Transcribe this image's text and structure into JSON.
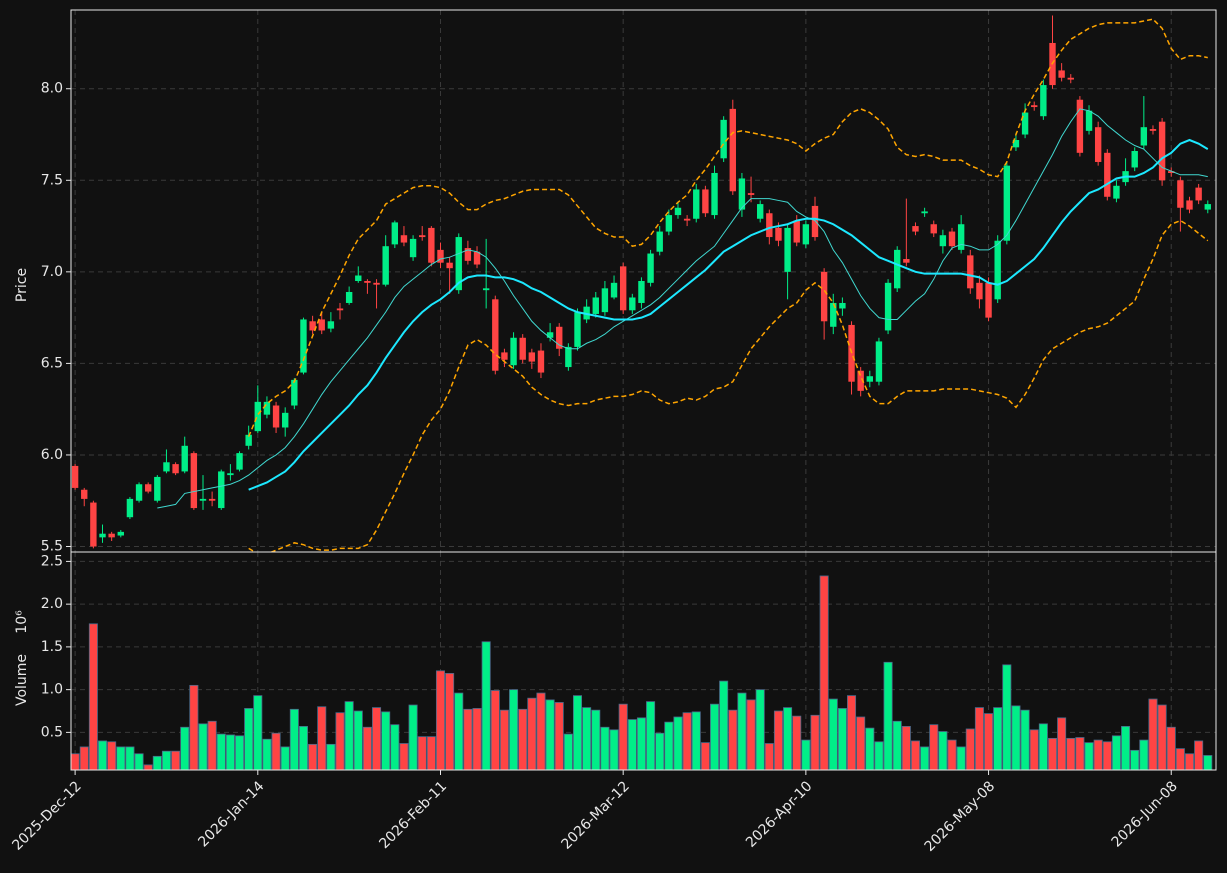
{
  "chart_data": {
    "type": "candlestick",
    "ylabel": "Price",
    "volume_label": "Volume",
    "volume_offset": "10⁶",
    "up_color": "#00ee88",
    "down_color": "#ff4444",
    "grid": true,
    "categories": [
      "2025-Dec-12",
      null,
      null,
      null,
      null,
      null,
      null,
      null,
      null,
      null,
      null,
      null,
      null,
      null,
      null,
      null,
      null,
      null,
      null,
      null,
      "2026-Jan-14",
      null,
      null,
      null,
      null,
      null,
      null,
      null,
      null,
      null,
      null,
      null,
      null,
      null,
      null,
      null,
      null,
      null,
      null,
      null,
      "2026-Feb-11",
      null,
      null,
      null,
      null,
      null,
      null,
      null,
      null,
      null,
      null,
      null,
      null,
      null,
      null,
      null,
      null,
      null,
      null,
      null,
      "2026-Mar-12",
      null,
      null,
      null,
      null,
      null,
      null,
      null,
      null,
      null,
      null,
      null,
      null,
      null,
      null,
      null,
      null,
      null,
      null,
      null,
      "2026-Apr-10",
      null,
      null,
      null,
      null,
      null,
      null,
      null,
      null,
      null,
      null,
      null,
      null,
      null,
      null,
      null,
      null,
      null,
      null,
      null,
      "2026-May-08",
      null,
      null,
      null,
      null,
      null,
      null,
      null,
      null,
      null,
      null,
      null,
      null,
      null,
      null,
      null,
      null,
      null,
      null,
      null,
      "2026-Jun-08",
      null,
      null,
      null,
      null
    ],
    "open": [
      5.94,
      5.81,
      5.74,
      5.55,
      5.57,
      5.56,
      5.66,
      5.75,
      5.84,
      5.75,
      5.91,
      5.95,
      5.91,
      6.01,
      5.75,
      5.76,
      5.71,
      5.89,
      5.92,
      6.05,
      6.13,
      6.22,
      6.27,
      6.15,
      6.27,
      6.45,
      6.73,
      6.74,
      6.69,
      6.8,
      6.83,
      6.95,
      6.95,
      6.94,
      6.93,
      7.15,
      7.2,
      7.08,
      7.2,
      7.24,
      7.12,
      7.05,
      6.9,
      7.13,
      7.11,
      6.9,
      6.85,
      6.56,
      6.49,
      6.64,
      6.56,
      6.57,
      6.64,
      6.7,
      6.48,
      6.59,
      6.74,
      6.77,
      6.78,
      6.86,
      7.03,
      6.79,
      6.83,
      6.94,
      7.11,
      7.22,
      7.31,
      7.29,
      7.29,
      7.45,
      7.31,
      7.62,
      7.89,
      7.34,
      7.43,
      7.29,
      7.32,
      7.24,
      7.0,
      7.28,
      7.15,
      7.36,
      7.0,
      6.7,
      6.8,
      6.71,
      6.46,
      6.4,
      6.4,
      6.68,
      6.91,
      7.07,
      7.25,
      7.32,
      7.26,
      7.14,
      7.22,
      7.12,
      7.09,
      6.94,
      6.94,
      6.85,
      7.17,
      7.68,
      7.75,
      7.91,
      7.85,
      8.25,
      8.1,
      8.06,
      7.94,
      7.77,
      7.79,
      7.65,
      7.4,
      7.49,
      7.57,
      7.69,
      7.78,
      7.82,
      7.55,
      7.5,
      7.39,
      7.46,
      7.34
    ],
    "high": [
      5.95,
      5.82,
      5.75,
      5.62,
      5.58,
      5.59,
      5.77,
      5.85,
      5.85,
      5.89,
      6.03,
      5.96,
      6.1,
      6.02,
      5.89,
      5.8,
      5.92,
      5.95,
      6.02,
      6.16,
      6.38,
      6.32,
      6.29,
      6.26,
      6.42,
      6.75,
      6.76,
      6.78,
      6.78,
      6.83,
      6.92,
      7.03,
      6.96,
      6.96,
      7.2,
      7.28,
      7.25,
      7.2,
      7.25,
      7.25,
      7.16,
      7.08,
      7.21,
      7.17,
      7.14,
      7.18,
      6.87,
      6.58,
      6.67,
      6.66,
      6.58,
      6.61,
      6.72,
      6.72,
      6.61,
      6.8,
      6.85,
      6.89,
      6.95,
      6.98,
      7.05,
      6.88,
      6.97,
      7.12,
      7.25,
      7.34,
      7.38,
      7.31,
      7.48,
      7.47,
      7.58,
      7.85,
      7.94,
      7.54,
      7.52,
      7.39,
      7.34,
      7.27,
      7.26,
      7.31,
      7.28,
      7.41,
      7.02,
      6.88,
      6.86,
      6.73,
      6.48,
      6.46,
      6.64,
      6.96,
      7.14,
      7.4,
      7.27,
      7.35,
      7.28,
      7.23,
      7.24,
      7.31,
      7.12,
      6.98,
      6.97,
      7.2,
      7.6,
      7.76,
      7.92,
      7.93,
      8.05,
      8.4,
      8.14,
      8.08,
      7.96,
      7.91,
      7.82,
      7.67,
      7.5,
      7.62,
      7.68,
      7.96,
      7.8,
      7.84,
      7.57,
      7.52,
      7.41,
      7.48,
      7.39
    ],
    "low": [
      5.81,
      5.72,
      5.49,
      5.52,
      5.53,
      5.55,
      5.65,
      5.74,
      5.79,
      5.74,
      5.9,
      5.89,
      5.9,
      5.7,
      5.7,
      5.72,
      5.7,
      5.86,
      5.91,
      6.03,
      6.12,
      6.2,
      6.12,
      6.1,
      6.25,
      6.44,
      6.66,
      6.66,
      6.67,
      6.74,
      6.82,
      6.94,
      6.88,
      6.8,
      6.92,
      7.13,
      7.14,
      7.06,
      7.17,
      7.03,
      7.02,
      6.88,
      6.88,
      7.04,
      7.02,
      6.8,
      6.44,
      6.48,
      6.47,
      6.5,
      6.47,
      6.42,
      6.62,
      6.54,
      6.46,
      6.57,
      6.72,
      6.75,
      6.76,
      6.85,
      6.77,
      6.77,
      6.8,
      6.92,
      7.09,
      7.2,
      7.29,
      7.25,
      7.27,
      7.3,
      7.29,
      7.6,
      7.42,
      7.3,
      7.38,
      7.27,
      7.15,
      7.14,
      6.85,
      7.14,
      7.13,
      7.17,
      6.63,
      6.66,
      6.76,
      6.33,
      6.32,
      6.37,
      6.38,
      6.66,
      6.89,
      7.03,
      7.2,
      7.3,
      7.19,
      7.1,
      7.12,
      7.1,
      6.88,
      6.8,
      6.73,
      6.83,
      7.15,
      7.66,
      7.73,
      7.88,
      7.83,
      8.0,
      8.04,
      8.03,
      7.63,
      7.75,
      7.58,
      7.39,
      7.38,
      7.47,
      7.55,
      7.67,
      7.75,
      7.47,
      7.52,
      7.22,
      7.32,
      7.37,
      7.32
    ],
    "close": [
      5.82,
      5.76,
      5.5,
      5.57,
      5.55,
      5.58,
      5.76,
      5.84,
      5.8,
      5.88,
      5.96,
      5.9,
      6.05,
      5.71,
      5.76,
      5.75,
      5.91,
      5.9,
      6.01,
      6.11,
      6.29,
      6.29,
      6.15,
      6.23,
      6.41,
      6.74,
      6.68,
      6.68,
      6.73,
      6.79,
      6.89,
      6.98,
      6.94,
      6.93,
      7.14,
      7.27,
      7.16,
      7.18,
      7.19,
      7.05,
      7.05,
      7.02,
      7.19,
      7.06,
      7.04,
      6.91,
      6.46,
      6.52,
      6.64,
      6.52,
      6.51,
      6.45,
      6.67,
      6.58,
      6.59,
      6.78,
      6.81,
      6.86,
      6.91,
      6.94,
      6.79,
      6.86,
      6.95,
      7.1,
      7.22,
      7.31,
      7.35,
      7.28,
      7.45,
      7.32,
      7.54,
      7.83,
      7.44,
      7.51,
      7.42,
      7.37,
      7.19,
      7.17,
      7.24,
      7.16,
      7.26,
      7.19,
      6.73,
      6.83,
      6.83,
      6.4,
      6.35,
      6.43,
      6.62,
      6.94,
      7.12,
      7.05,
      7.22,
      7.33,
      7.21,
      7.2,
      7.14,
      7.26,
      6.91,
      6.85,
      6.75,
      7.17,
      7.58,
      7.72,
      7.87,
      7.9,
      8.02,
      8.02,
      8.06,
      8.05,
      7.65,
      7.88,
      7.6,
      7.41,
      7.47,
      7.55,
      7.66,
      7.79,
      7.77,
      7.5,
      7.54,
      7.35,
      7.34,
      7.39,
      7.37
    ],
    "volume": [
      0.25,
      0.33,
      1.77,
      0.4,
      0.39,
      0.33,
      0.33,
      0.25,
      0.12,
      0.22,
      0.28,
      0.28,
      0.56,
      1.05,
      0.6,
      0.63,
      0.48,
      0.47,
      0.46,
      0.78,
      0.93,
      0.42,
      0.49,
      0.33,
      0.77,
      0.57,
      0.36,
      0.8,
      0.36,
      0.73,
      0.86,
      0.75,
      0.56,
      0.79,
      0.74,
      0.59,
      0.37,
      0.82,
      0.45,
      0.45,
      1.22,
      1.19,
      0.96,
      0.77,
      0.78,
      1.56,
      0.99,
      0.76,
      1.0,
      0.77,
      0.9,
      0.96,
      0.88,
      0.85,
      0.48,
      0.93,
      0.79,
      0.76,
      0.56,
      0.53,
      0.83,
      0.65,
      0.67,
      0.86,
      0.49,
      0.62,
      0.68,
      0.73,
      0.74,
      0.38,
      0.83,
      1.1,
      0.76,
      0.96,
      0.88,
      1.0,
      0.37,
      0.75,
      0.79,
      0.69,
      0.41,
      0.7,
      2.33,
      0.89,
      0.78,
      0.93,
      0.68,
      0.55,
      0.39,
      1.32,
      0.63,
      0.57,
      0.4,
      0.33,
      0.59,
      0.51,
      0.41,
      0.33,
      0.54,
      0.79,
      0.72,
      0.79,
      1.29,
      0.81,
      0.76,
      0.53,
      0.6,
      0.43,
      0.67,
      0.43,
      0.44,
      0.38,
      0.41,
      0.39,
      0.46,
      0.57,
      0.29,
      0.41,
      0.89,
      0.82,
      0.56,
      0.31,
      0.25,
      0.4,
      0.23
    ],
    "ylim": [
      5.47,
      8.43
    ],
    "yticks": [
      5.5,
      {
        "value": 6,
        "label": "6.0"
      },
      6.5,
      {
        "value": 7,
        "label": "7.0"
      },
      7.5,
      {
        "value": 8,
        "label": "8.0"
      }
    ],
    "volume_ylim": [
      0.06,
      2.61
    ],
    "volume_yticks": [
      0.5,
      {
        "value": 1,
        "label": "1.0"
      },
      1.5,
      {
        "value": 2,
        "label": "2.0"
      },
      2.5
    ],
    "lines": [
      {
        "color": "#40d8d0",
        "width": 1,
        "dashed": false,
        "values": [
          null,
          null,
          null,
          null,
          null,
          null,
          null,
          null,
          null,
          5.71,
          5.72,
          5.73,
          5.79,
          5.8,
          5.81,
          5.82,
          5.83,
          5.84,
          5.86,
          5.89,
          5.93,
          5.97,
          6.0,
          6.04,
          6.1,
          6.17,
          6.25,
          6.33,
          6.4,
          6.46,
          6.52,
          6.58,
          6.64,
          6.71,
          6.78,
          6.86,
          6.92,
          6.96,
          7.0,
          7.04,
          7.07,
          7.08,
          7.1,
          7.12,
          7.11,
          7.08,
          7.02,
          6.95,
          6.87,
          6.8,
          6.73,
          6.68,
          6.64,
          6.6,
          6.58,
          6.58,
          6.61,
          6.63,
          6.66,
          6.7,
          6.73,
          6.76,
          6.79,
          6.82,
          6.86,
          6.91,
          6.96,
          7.01,
          7.06,
          7.1,
          7.14,
          7.21,
          7.28,
          7.35,
          7.4,
          7.4,
          7.4,
          7.39,
          7.38,
          7.33,
          7.3,
          7.28,
          7.22,
          7.12,
          7.05,
          6.96,
          6.87,
          6.8,
          6.75,
          6.74,
          6.74,
          6.79,
          6.84,
          6.88,
          6.96,
          7.06,
          7.13,
          7.15,
          7.14,
          7.12,
          7.12,
          7.15,
          7.2,
          7.28,
          7.37,
          7.46,
          7.55,
          7.64,
          7.74,
          7.82,
          7.89,
          7.88,
          7.85,
          7.8,
          7.76,
          7.72,
          7.69,
          7.67,
          7.62,
          7.57,
          7.55,
          7.53,
          7.53,
          7.53,
          7.52
        ]
      },
      {
        "color": "#1ce8ff",
        "width": 2,
        "dashed": false,
        "values": [
          null,
          null,
          null,
          null,
          null,
          null,
          null,
          null,
          null,
          null,
          null,
          null,
          null,
          null,
          null,
          null,
          null,
          null,
          null,
          5.81,
          5.83,
          5.85,
          5.88,
          5.91,
          5.96,
          6.02,
          6.07,
          6.12,
          6.17,
          6.22,
          6.27,
          6.33,
          6.38,
          6.45,
          6.53,
          6.6,
          6.67,
          6.73,
          6.78,
          6.82,
          6.85,
          6.89,
          6.94,
          6.97,
          6.98,
          6.98,
          6.97,
          6.97,
          6.96,
          6.94,
          6.91,
          6.89,
          6.86,
          6.83,
          6.8,
          6.78,
          6.77,
          6.76,
          6.75,
          6.74,
          6.74,
          6.74,
          6.75,
          6.77,
          6.81,
          6.85,
          6.89,
          6.93,
          6.97,
          7.01,
          7.06,
          7.11,
          7.14,
          7.17,
          7.2,
          7.22,
          7.24,
          7.25,
          7.26,
          7.28,
          7.29,
          7.29,
          7.28,
          7.26,
          7.23,
          7.2,
          7.16,
          7.12,
          7.08,
          7.06,
          7.04,
          7.02,
          7.0,
          6.99,
          6.99,
          6.99,
          6.99,
          6.99,
          6.98,
          6.97,
          6.94,
          6.93,
          6.95,
          6.99,
          7.03,
          7.07,
          7.13,
          7.2,
          7.27,
          7.33,
          7.38,
          7.43,
          7.45,
          7.48,
          7.51,
          7.52,
          7.52,
          7.54,
          7.57,
          7.62,
          7.65,
          7.7,
          7.72,
          7.7,
          7.67
        ]
      },
      {
        "color": "#ffa500",
        "width": 1.5,
        "dashed": true,
        "values": [
          null,
          null,
          null,
          null,
          null,
          null,
          null,
          null,
          null,
          null,
          null,
          null,
          null,
          null,
          null,
          null,
          null,
          null,
          null,
          6.1,
          6.22,
          6.28,
          6.32,
          6.35,
          6.4,
          6.52,
          6.65,
          6.78,
          6.88,
          6.98,
          7.09,
          7.18,
          7.23,
          7.28,
          7.37,
          7.4,
          7.43,
          7.46,
          7.47,
          7.47,
          7.46,
          7.43,
          7.38,
          7.34,
          7.34,
          7.37,
          7.39,
          7.4,
          7.42,
          7.44,
          7.45,
          7.45,
          7.45,
          7.45,
          7.42,
          7.36,
          7.3,
          7.24,
          7.21,
          7.19,
          7.19,
          7.14,
          7.15,
          7.2,
          7.27,
          7.33,
          7.38,
          7.42,
          7.5,
          7.56,
          7.63,
          7.7,
          7.76,
          7.77,
          7.76,
          7.75,
          7.74,
          7.73,
          7.72,
          7.7,
          7.66,
          7.7,
          7.73,
          7.75,
          7.82,
          7.87,
          7.89,
          7.87,
          7.83,
          7.78,
          7.68,
          7.64,
          7.63,
          7.64,
          7.63,
          7.61,
          7.61,
          7.61,
          7.58,
          7.56,
          7.53,
          7.52,
          7.6,
          7.75,
          7.88,
          7.97,
          8.05,
          8.14,
          8.21,
          8.27,
          8.3,
          8.33,
          8.35,
          8.36,
          8.36,
          8.36,
          8.36,
          8.37,
          8.38,
          8.33,
          8.22,
          8.16,
          8.18,
          8.18,
          8.17
        ]
      },
      {
        "color": "#ffa500",
        "width": 1.5,
        "dashed": true,
        "values": [
          null,
          null,
          null,
          null,
          null,
          null,
          null,
          null,
          null,
          null,
          null,
          null,
          null,
          null,
          null,
          null,
          null,
          null,
          null,
          5.49,
          5.46,
          5.46,
          5.48,
          5.5,
          5.52,
          5.51,
          5.49,
          5.48,
          5.48,
          5.49,
          5.49,
          5.49,
          5.51,
          5.59,
          5.69,
          5.79,
          5.9,
          6.0,
          6.11,
          6.19,
          6.25,
          6.35,
          6.48,
          6.6,
          6.63,
          6.6,
          6.55,
          6.51,
          6.47,
          6.43,
          6.37,
          6.33,
          6.3,
          6.28,
          6.27,
          6.28,
          6.28,
          6.3,
          6.31,
          6.32,
          6.32,
          6.33,
          6.35,
          6.34,
          6.3,
          6.28,
          6.29,
          6.31,
          6.3,
          6.32,
          6.36,
          6.37,
          6.4,
          6.49,
          6.58,
          6.64,
          6.7,
          6.75,
          6.8,
          6.83,
          6.9,
          6.94,
          6.9,
          6.83,
          6.71,
          6.56,
          6.43,
          6.32,
          6.28,
          6.28,
          6.32,
          6.35,
          6.35,
          6.35,
          6.35,
          6.36,
          6.36,
          6.36,
          6.36,
          6.35,
          6.34,
          6.33,
          6.31,
          6.26,
          6.33,
          6.42,
          6.52,
          6.58,
          6.61,
          6.64,
          6.67,
          6.69,
          6.7,
          6.72,
          6.76,
          6.8,
          6.84,
          6.96,
          7.07,
          7.2,
          7.26,
          7.28,
          7.25,
          7.21,
          7.17
        ]
      }
    ]
  }
}
